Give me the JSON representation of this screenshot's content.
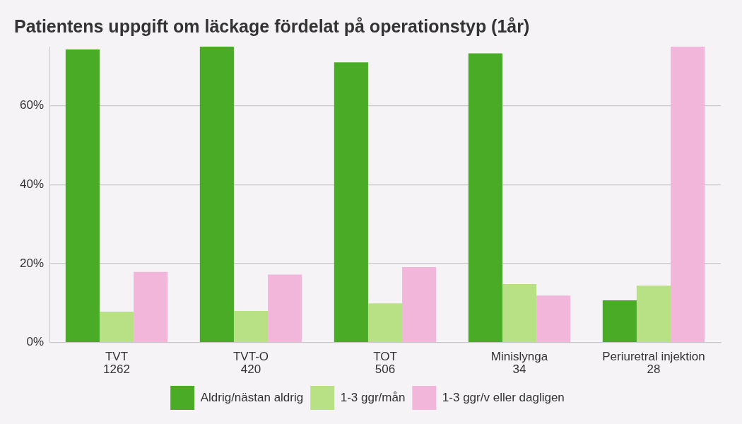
{
  "chart_data": {
    "type": "bar",
    "title": "Patientens uppgift om läckage fördelat på operationstyp (1år)",
    "categories": [
      [
        "TVT",
        "1262"
      ],
      [
        "TVT-O",
        "420"
      ],
      [
        "TOT",
        "506"
      ],
      [
        "Minislynga",
        "34"
      ],
      [
        "Periuretral injektion",
        "28"
      ]
    ],
    "series": [
      {
        "name": "Aldrig/nästan aldrig",
        "color": "#4aac26",
        "values": [
          74.3,
          75,
          71.0,
          73.3,
          10.7
        ]
      },
      {
        "name": "1-3 ggr/mån",
        "color": "#b8e186",
        "values": [
          7.8,
          8.0,
          9.9,
          14.8,
          14.4
        ]
      },
      {
        "name": "1-3 ggr/v eller dagligen",
        "color": "#f1b6da",
        "values": [
          17.9,
          17.2,
          19.1,
          11.9,
          75
        ]
      }
    ],
    "ylim": [
      0,
      75
    ],
    "yticks": [
      {
        "value": 0,
        "label": "0%"
      },
      {
        "value": 20,
        "label": "20%"
      },
      {
        "value": 40,
        "label": "40%"
      },
      {
        "value": 60,
        "label": "60%"
      }
    ],
    "grid": true,
    "legend": "bottom"
  }
}
